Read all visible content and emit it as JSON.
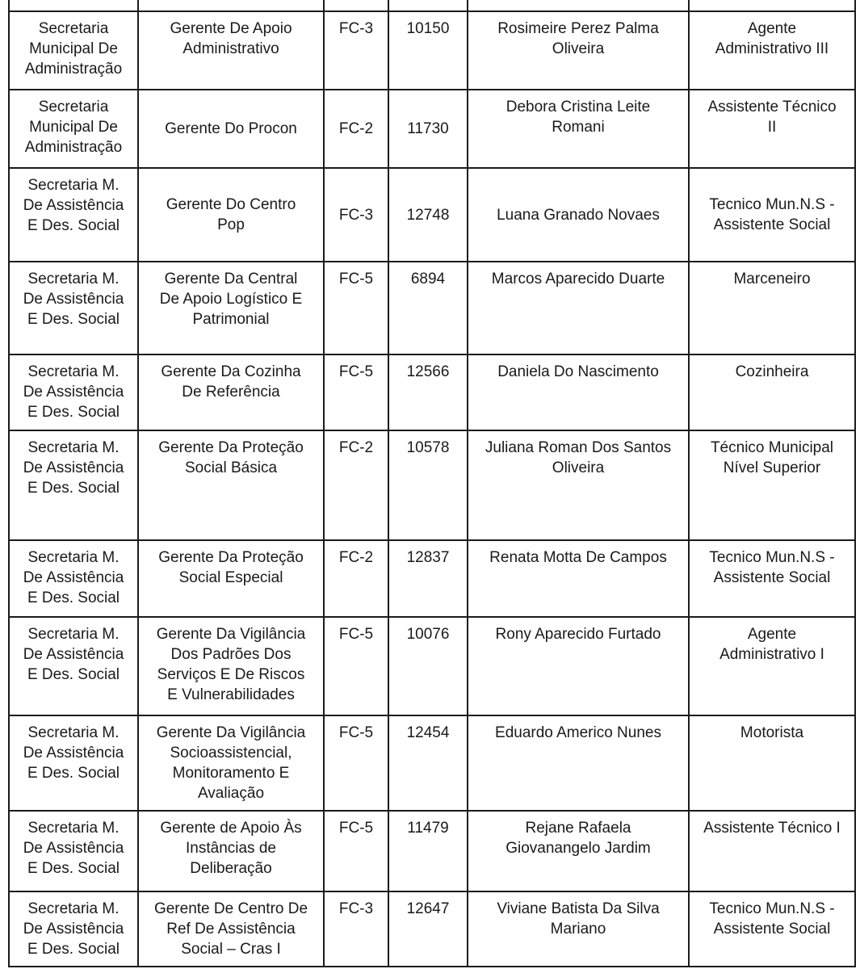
{
  "document": {
    "table": {
      "rows": [
        {
          "department": "Secretaria\nMunicipal De\nAdministração",
          "position": "Gerente De Apoio\nAdministrativo",
          "fc_level": "FC-3",
          "registry": "10150",
          "name": "Rosimeire Perez Palma\nOliveira",
          "title": "Agente\nAdministrativo III"
        },
        {
          "department": "Secretaria\nMunicipal De\nAdministração",
          "position": "Gerente  Do Procon",
          "fc_level": "FC-2",
          "registry": "11730",
          "name": "Debora Cristina Leite\nRomani",
          "title": "Assistente Técnico\nII"
        },
        {
          "department": "Secretaria M.\nDe Assistência\nE Des. Social",
          "position": "Gerente Do Centro\nPop",
          "fc_level": "FC-3",
          "registry": "12748",
          "name": "Luana Granado Novaes",
          "title": "Tecnico Mun.N.S -\nAssistente Social"
        },
        {
          "department": "Secretaria M.\nDe Assistência\nE Des. Social",
          "position": "Gerente Da Central\nDe Apoio Logístico E\nPatrimonial",
          "fc_level": "FC-5",
          "registry": "6894",
          "name": "Marcos Aparecido Duarte",
          "title": "Marceneiro"
        },
        {
          "department": "Secretaria M.\nDe Assistência\nE Des. Social",
          "position": "Gerente Da Cozinha\nDe Referência",
          "fc_level": "FC-5",
          "registry": "12566",
          "name": "Daniela Do Nascimento",
          "title": "Cozinheira"
        },
        {
          "department": "Secretaria M.\nDe Assistência\nE Des. Social",
          "position": "Gerente Da Proteção\nSocial Básica",
          "fc_level": "FC-2",
          "registry": "10578",
          "name": "Juliana Roman Dos Santos\nOliveira",
          "title": "Técnico Municipal\nNível Superior"
        },
        {
          "department": "Secretaria M.\nDe Assistência\nE Des. Social",
          "position": "Gerente Da Proteção\nSocial Especial",
          "fc_level": "FC-2",
          "registry": "12837",
          "name": "Renata Motta De Campos",
          "title": "Tecnico Mun.N.S -\nAssistente Social"
        },
        {
          "department": "Secretaria M.\nDe Assistência\nE Des. Social",
          "position": "Gerente Da Vigilância\nDos Padrões Dos\nServiços E De Riscos\nE Vulnerabilidades",
          "fc_level": "FC-5",
          "registry": "10076",
          "name": "Rony Aparecido Furtado",
          "title": "Agente\nAdministrativo I"
        },
        {
          "department": "Secretaria M.\nDe Assistência\nE Des. Social",
          "position": "Gerente Da Vigilância\nSocioassistencial,\nMonitoramento E\nAvaliação",
          "fc_level": "FC-5",
          "registry": "12454",
          "name": "Eduardo Americo Nunes",
          "title": "Motorista"
        },
        {
          "department": "Secretaria M.\nDe Assistência\nE Des. Social",
          "position": "Gerente de Apoio Às\nInstâncias de\nDeliberação",
          "fc_level": "FC-5",
          "registry": "11479",
          "name": "Rejane Rafaela\nGiovanangelo Jardim",
          "title": "Assistente Técnico I"
        },
        {
          "department": "Secretaria M.\nDe Assistência\nE Des. Social",
          "position": "Gerente De Centro De\nRef De Assistência\nSocial – Cras I",
          "fc_level": "FC-3",
          "registry": "12647",
          "name": "Viviane Batista Da Silva\nMariano",
          "title": "Tecnico Mun.N.S -\nAssistente Social"
        }
      ]
    }
  }
}
